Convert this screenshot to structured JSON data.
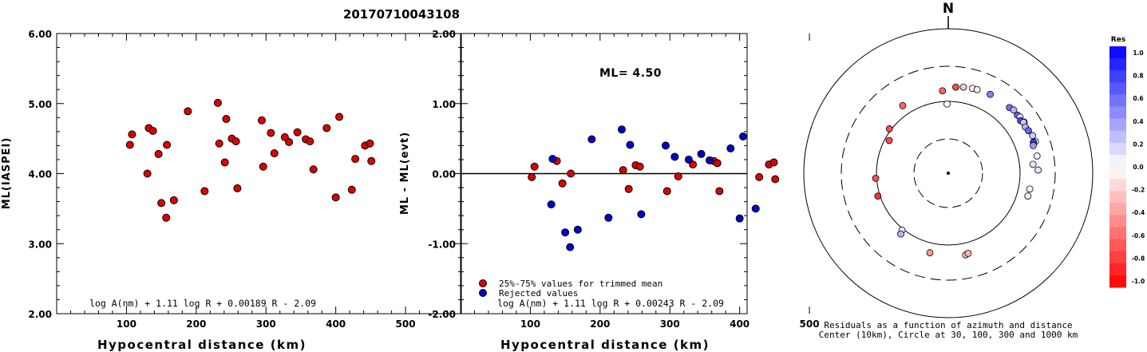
{
  "title": "20170710043108",
  "colors": {
    "kept": "#dd0000",
    "rejected": "#0000cc",
    "axis": "#000000"
  },
  "chart_data": [
    {
      "type": "scatter",
      "panel": "left",
      "xlabel": "Hypocentral distance (km)",
      "ylabel": "ML(IASPEI)",
      "xlim": [
        0,
        580
      ],
      "ylim": [
        2.0,
        6.0
      ],
      "xticks": [
        "100",
        "200",
        "300",
        "400",
        "500"
      ],
      "yticks": [
        "2.00",
        "3.00",
        "4.00",
        "5.00",
        "6.00"
      ],
      "formula": "log A(nm) + 1.11 log R + 0.00189 R - 2.09",
      "points": [
        {
          "x": 105,
          "y": 4.41
        },
        {
          "x": 108,
          "y": 4.56
        },
        {
          "x": 130,
          "y": 4.0
        },
        {
          "x": 132,
          "y": 4.65
        },
        {
          "x": 138,
          "y": 4.61
        },
        {
          "x": 146,
          "y": 4.28
        },
        {
          "x": 150,
          "y": 3.58
        },
        {
          "x": 157,
          "y": 3.37
        },
        {
          "x": 158,
          "y": 4.41
        },
        {
          "x": 168,
          "y": 3.62
        },
        {
          "x": 188,
          "y": 4.89
        },
        {
          "x": 212,
          "y": 3.75
        },
        {
          "x": 231,
          "y": 5.01
        },
        {
          "x": 233,
          "y": 4.43
        },
        {
          "x": 241,
          "y": 4.16
        },
        {
          "x": 243,
          "y": 4.78
        },
        {
          "x": 251,
          "y": 4.5
        },
        {
          "x": 257,
          "y": 4.46
        },
        {
          "x": 259,
          "y": 3.79
        },
        {
          "x": 294,
          "y": 4.76
        },
        {
          "x": 296,
          "y": 4.1
        },
        {
          "x": 307,
          "y": 4.58
        },
        {
          "x": 312,
          "y": 4.29
        },
        {
          "x": 327,
          "y": 4.52
        },
        {
          "x": 333,
          "y": 4.45
        },
        {
          "x": 345,
          "y": 4.59
        },
        {
          "x": 357,
          "y": 4.49
        },
        {
          "x": 363,
          "y": 4.46
        },
        {
          "x": 368,
          "y": 4.06
        },
        {
          "x": 387,
          "y": 4.65
        },
        {
          "x": 400,
          "y": 3.66
        },
        {
          "x": 405,
          "y": 4.81
        },
        {
          "x": 423,
          "y": 3.77
        },
        {
          "x": 428,
          "y": 4.21
        },
        {
          "x": 442,
          "y": 4.4
        },
        {
          "x": 449,
          "y": 4.43
        },
        {
          "x": 451,
          "y": 4.18
        }
      ]
    },
    {
      "type": "scatter",
      "panel": "middle",
      "xlabel": "Hypocentral distance (km)",
      "ylabel": "ML - ML(evt)",
      "xlim": [
        0,
        580
      ],
      "ylim": [
        -2.0,
        2.0
      ],
      "xticks": [
        "100",
        "200",
        "300",
        "400",
        "500"
      ],
      "yticks": [
        "-2.00",
        "-1.00",
        "0.00",
        "1.00",
        "2.00"
      ],
      "ml_label": "ML= 4.50",
      "formula": "log A(nm) + 1.11 log R + 0.00243 R - 2.09",
      "legend": [
        {
          "label": "25%-75% values for trimmed mean",
          "series": "kept"
        },
        {
          "label": "Rejected values",
          "series": "rejected"
        }
      ],
      "series": [
        {
          "name": "25%-75% values for trimmed mean",
          "key": "kept",
          "points": [
            {
              "x": 102,
              "y": -0.05
            },
            {
              "x": 106,
              "y": 0.1
            },
            {
              "x": 138,
              "y": 0.18
            },
            {
              "x": 146,
              "y": -0.14
            },
            {
              "x": 158,
              "y": 0.0
            },
            {
              "x": 233,
              "y": 0.05
            },
            {
              "x": 241,
              "y": -0.22
            },
            {
              "x": 251,
              "y": 0.12
            },
            {
              "x": 257,
              "y": 0.1
            },
            {
              "x": 296,
              "y": -0.25
            },
            {
              "x": 312,
              "y": -0.04
            },
            {
              "x": 333,
              "y": 0.13
            },
            {
              "x": 363,
              "y": 0.18
            },
            {
              "x": 368,
              "y": 0.15
            },
            {
              "x": 371,
              "y": -0.25
            },
            {
              "x": 428,
              "y": -0.05
            },
            {
              "x": 442,
              "y": 0.13
            },
            {
              "x": 449,
              "y": 0.16
            },
            {
              "x": 451,
              "y": -0.08
            }
          ]
        },
        {
          "name": "Rejected values",
          "key": "rejected",
          "points": [
            {
              "x": 130,
              "y": -0.44
            },
            {
              "x": 132,
              "y": 0.21
            },
            {
              "x": 150,
              "y": -0.84
            },
            {
              "x": 157,
              "y": -1.05
            },
            {
              "x": 168,
              "y": -0.8
            },
            {
              "x": 188,
              "y": 0.49
            },
            {
              "x": 212,
              "y": -0.63
            },
            {
              "x": 231,
              "y": 0.63
            },
            {
              "x": 243,
              "y": 0.41
            },
            {
              "x": 259,
              "y": -0.58
            },
            {
              "x": 294,
              "y": 0.4
            },
            {
              "x": 307,
              "y": 0.24
            },
            {
              "x": 327,
              "y": 0.2
            },
            {
              "x": 345,
              "y": 0.28
            },
            {
              "x": 357,
              "y": 0.19
            },
            {
              "x": 387,
              "y": 0.36
            },
            {
              "x": 400,
              "y": -0.64
            },
            {
              "x": 405,
              "y": 0.53
            },
            {
              "x": 423,
              "y": -0.5
            }
          ]
        }
      ]
    },
    {
      "type": "polar-scatter",
      "panel": "right",
      "north_label": "N",
      "caption_line1": "Residuals as a function of azimuth and distance",
      "caption_line2": "Center (10km), Circle at 30, 100, 300 and 1000 km",
      "rings_km": [
        30,
        100,
        300,
        1000
      ],
      "colorbar": {
        "title": "Res",
        "min": -1.0,
        "max": 1.0,
        "ticks": [
          "1.0",
          "0.8",
          "0.6",
          "0.4",
          "0.2",
          "0.0",
          "-0.2",
          "-0.4",
          "-0.6",
          "-0.8",
          "-1.0"
        ]
      },
      "points": [
        {
          "az": 356,
          "dist": 140,
          "res": -0.6
        },
        {
          "az": 5,
          "dist": 158,
          "res": -0.7
        },
        {
          "az": 10,
          "dist": 163,
          "res": -0.2
        },
        {
          "az": 16,
          "dist": 167,
          "res": -0.05
        },
        {
          "az": 19,
          "dist": 168,
          "res": -0.08
        },
        {
          "az": 28,
          "dist": 173,
          "res": 0.5
        },
        {
          "az": 43,
          "dist": 175,
          "res": 0.55
        },
        {
          "az": 46,
          "dist": 182,
          "res": 0.3
        },
        {
          "az": 50,
          "dist": 178,
          "res": 0.6
        },
        {
          "az": 52,
          "dist": 183,
          "res": 0.1
        },
        {
          "az": 54,
          "dist": 173,
          "res": 0.7
        },
        {
          "az": 56,
          "dist": 185,
          "res": 0.3
        },
        {
          "az": 56,
          "dist": 181,
          "res": 0.2
        },
        {
          "az": 59,
          "dist": 176,
          "res": 0.3
        },
        {
          "az": 62,
          "dist": 181,
          "res": 0.6
        },
        {
          "az": 66,
          "dist": 190,
          "res": 0.2
        },
        {
          "az": 70,
          "dist": 192,
          "res": 0.1
        },
        {
          "az": 70,
          "dist": 180,
          "res": 0.8
        },
        {
          "az": 72,
          "dist": 173,
          "res": 0.4
        },
        {
          "az": 79,
          "dist": 179,
          "res": 0.05
        },
        {
          "az": 88,
          "dist": 176,
          "res": 0.1
        },
        {
          "az": 84,
          "dist": 152,
          "res": 0.1
        },
        {
          "az": 101,
          "dist": 142,
          "res": 0.05
        },
        {
          "az": 106,
          "dist": 141,
          "res": 0.05
        },
        {
          "az": 193,
          "dist": 136,
          "res": -0.4
        },
        {
          "az": 168,
          "dist": 144,
          "res": -0.3
        },
        {
          "az": 166,
          "dist": 140,
          "res": -0.3
        },
        {
          "az": 219,
          "dist": 105,
          "res": 0.05
        },
        {
          "az": 218,
          "dist": 118,
          "res": 0.3
        },
        {
          "az": 252,
          "dist": 107,
          "res": -0.8
        },
        {
          "az": 266,
          "dist": 103,
          "res": -0.7
        },
        {
          "az": 299,
          "dist": 87,
          "res": -0.7
        },
        {
          "az": 307,
          "dist": 106,
          "res": -0.7
        },
        {
          "az": 326,
          "dist": 135,
          "res": -0.6
        },
        {
          "az": 359,
          "dist": 92,
          "res": 0.0
        }
      ]
    }
  ]
}
